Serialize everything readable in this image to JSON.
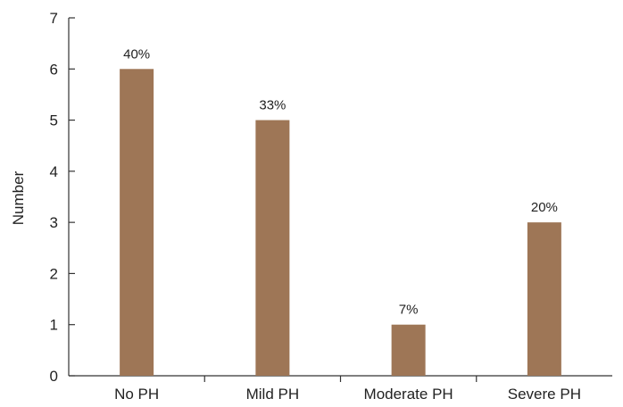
{
  "chart_data": {
    "type": "bar",
    "categories": [
      "No PH",
      "Mild PH",
      "Moderate PH",
      "Severe PH"
    ],
    "values": [
      6,
      5,
      1,
      3
    ],
    "data_labels": [
      "40%",
      "33%",
      "7%",
      "20%"
    ],
    "title": "",
    "xlabel": "",
    "ylabel": "Number",
    "ylim": [
      0,
      7
    ],
    "yticks": [
      0,
      1,
      2,
      3,
      4,
      5,
      6,
      7
    ],
    "grid": false,
    "legend": "none",
    "bar_color": "#9e7656"
  }
}
